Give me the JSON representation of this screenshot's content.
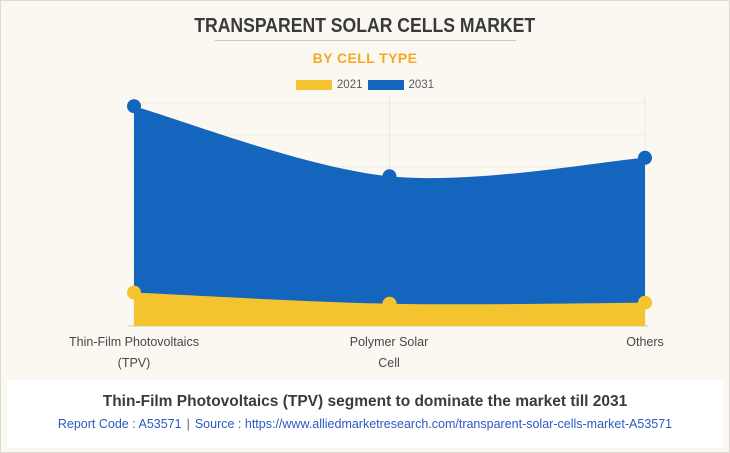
{
  "page": {
    "background": "#faf8f1",
    "border_color": "#dcdad2"
  },
  "header": {
    "title": "TRANSPARENT SOLAR CELLS MARKET",
    "subtitle": "BY CELL TYPE",
    "subtitle_color": "#f7a725"
  },
  "legend": {
    "position": "top",
    "items": [
      {
        "label": "2021",
        "color": "#f3c42f"
      },
      {
        "label": "2031",
        "color": "#1465bd"
      }
    ]
  },
  "chart_data": {
    "type": "area",
    "title": "TRANSPARENT SOLAR CELLS MARKET",
    "subtitle": "BY CELL TYPE",
    "categories": [
      "Thin-Film Photovoltaics (TPV)",
      "Polymer Solar Cell",
      "Others"
    ],
    "series": [
      {
        "name": "2021",
        "color": "#f3c42f",
        "values": [
          1.05,
          0.7,
          0.73
        ]
      },
      {
        "name": "2031",
        "color": "#1465bd",
        "values": [
          6.9,
          4.7,
          5.28
        ]
      }
    ],
    "xlabel": "",
    "ylabel": "",
    "ylim": [
      0,
      7
    ],
    "grid": true,
    "gridline_count": 7,
    "legend_position": "top",
    "note": "y-axis has no tick labels; values estimated in gridline units from pixel heights"
  },
  "xaxis": {
    "labels": [
      {
        "line1": "Thin-Film Photovoltaics",
        "line2": "(TPV)"
      },
      {
        "line1": "Polymer Solar",
        "line2": "Cell"
      },
      {
        "line1": "Others",
        "line2": ""
      }
    ]
  },
  "footer": {
    "caption": "Thin-Film Photovoltaics (TPV) segment to dominate the market till 2031",
    "report_code": "Report Code : A53571",
    "separator": "|",
    "source_label": "Source :",
    "source_url": "https://www.alliedmarketresearch.com/transparent-solar-cells-market-A53571",
    "link_color": "#2b59c3"
  }
}
